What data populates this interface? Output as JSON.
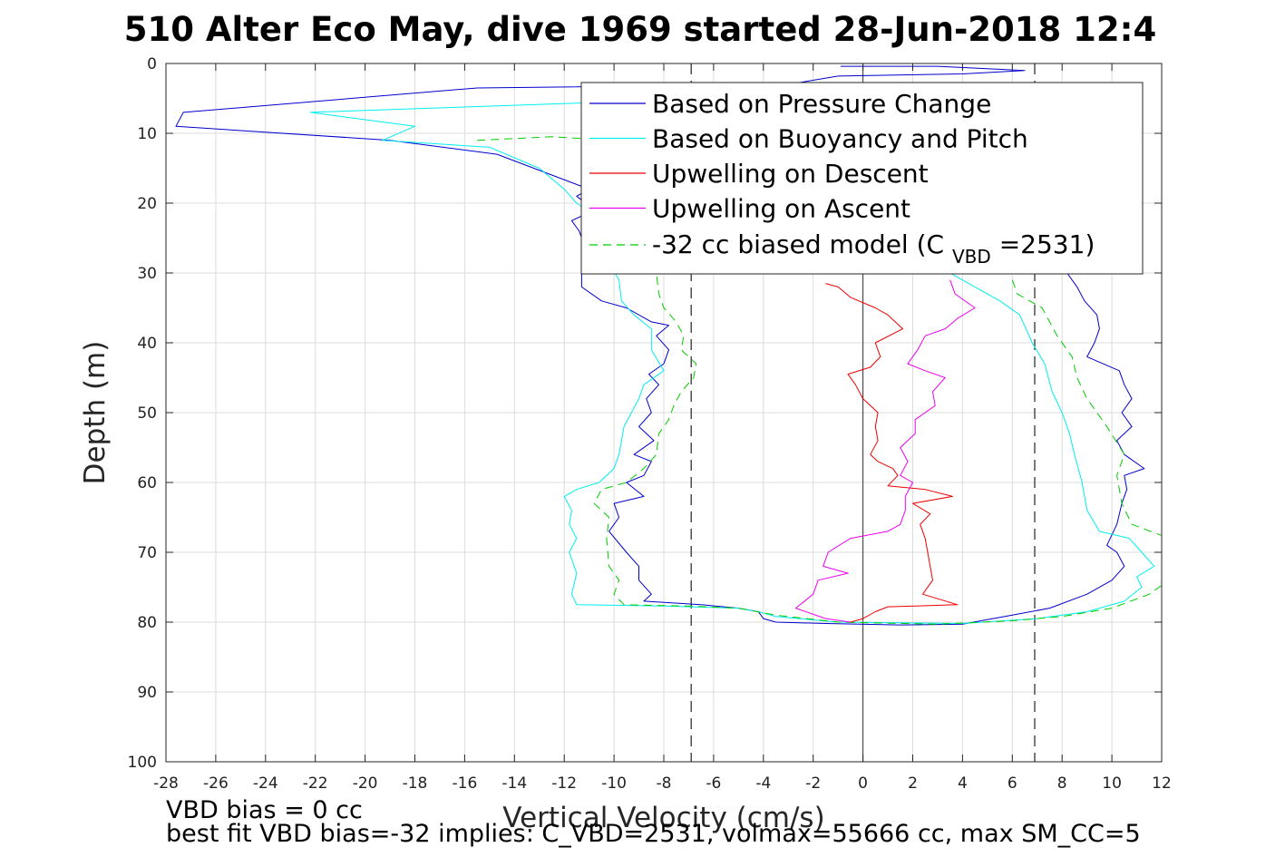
{
  "chart_data": {
    "type": "line",
    "title": "510 Alter Eco May, dive 1969 started 28-Jun-2018 12:4",
    "xlabel": "Vertical Velocity (cm/s)",
    "ylabel": "Depth (m)",
    "xlim": [
      -28,
      12
    ],
    "ylim": [
      0,
      100
    ],
    "y_reversed": true,
    "grid": true,
    "legend_position": "top-right",
    "xticks": [
      -28,
      -26,
      -24,
      -22,
      -20,
      -18,
      -16,
      -14,
      -12,
      -10,
      -8,
      -6,
      -4,
      -2,
      0,
      2,
      4,
      6,
      8,
      10,
      12
    ],
    "yticks": [
      0,
      10,
      20,
      30,
      40,
      50,
      60,
      70,
      80,
      90,
      100
    ],
    "reference_lines": {
      "zero_line_x": 0,
      "dashed_lines_x": [
        -6.9,
        6.9
      ]
    },
    "legend": {
      "entries": [
        {
          "label": "Based on Pressure Change",
          "color": "#0000cc",
          "style": "solid"
        },
        {
          "label": "Based on Buoyancy and Pitch",
          "color": "#00eeee",
          "style": "solid"
        },
        {
          "label": "Upwelling on Descent",
          "color": "#ee0000",
          "style": "solid"
        },
        {
          "label": "Upwelling on Ascent",
          "color": "#ee00ee",
          "style": "solid"
        }
      ],
      "model_entry": {
        "prefix": "-32 cc biased model (C",
        "subscript": "VBD",
        "suffix": "=2531)",
        "color": "#00cc00",
        "style": "dashed"
      }
    },
    "series": [
      {
        "name": "Based on Pressure Change",
        "color": "#0000cc",
        "points": [
          [
            -0.9,
            0.4
          ],
          [
            3,
            0.4
          ],
          [
            6.5,
            1
          ],
          [
            4,
            1.5
          ],
          [
            -1,
            1.8
          ],
          [
            -3,
            3
          ],
          [
            -15.5,
            3.5
          ],
          [
            -27.3,
            7
          ],
          [
            -27.6,
            9
          ],
          [
            -19,
            11
          ],
          [
            -14.7,
            13
          ],
          [
            -11,
            18
          ],
          [
            -11.5,
            19
          ],
          [
            -10.8,
            21
          ],
          [
            -11.7,
            22.5
          ],
          [
            -11.4,
            24
          ],
          [
            -11.2,
            26
          ],
          [
            -11,
            28
          ],
          [
            -11.3,
            30
          ],
          [
            -11.3,
            32
          ],
          [
            -10.5,
            34
          ],
          [
            -9.5,
            35
          ],
          [
            -8.5,
            37
          ],
          [
            -7.8,
            37.5
          ],
          [
            -8.3,
            39
          ],
          [
            -7.8,
            41
          ],
          [
            -8,
            43
          ],
          [
            -8.6,
            44.5
          ],
          [
            -8.2,
            46
          ],
          [
            -8.7,
            48
          ],
          [
            -8.5,
            50
          ],
          [
            -9,
            52
          ],
          [
            -8.4,
            54
          ],
          [
            -9.2,
            56
          ],
          [
            -8.5,
            57
          ],
          [
            -8.8,
            59
          ],
          [
            -9.5,
            60
          ],
          [
            -8.8,
            62
          ],
          [
            -10,
            63
          ],
          [
            -9.8,
            65
          ],
          [
            -10.2,
            67
          ],
          [
            -9.5,
            70
          ],
          [
            -9,
            72
          ],
          [
            -9,
            74
          ],
          [
            -8.5,
            76
          ],
          [
            -8.8,
            77
          ],
          [
            -6.5,
            77.5
          ],
          [
            -5,
            78
          ],
          [
            -4.2,
            78.5
          ],
          [
            -4,
            79.5
          ],
          [
            -3.5,
            80
          ],
          [
            -1.5,
            80.2
          ],
          [
            1.5,
            80.4
          ],
          [
            4,
            80.3
          ],
          [
            6,
            79
          ],
          [
            7.5,
            78
          ],
          [
            9,
            76
          ],
          [
            10,
            74
          ],
          [
            10.5,
            72
          ],
          [
            10.2,
            70
          ],
          [
            9.8,
            69
          ],
          [
            10.2,
            66
          ],
          [
            10.4,
            63
          ],
          [
            10.6,
            61
          ],
          [
            10.5,
            59
          ],
          [
            11.3,
            58
          ],
          [
            10.5,
            56
          ],
          [
            10.2,
            54
          ],
          [
            10.8,
            52
          ],
          [
            10.4,
            50
          ],
          [
            10.8,
            48
          ],
          [
            10.5,
            46
          ],
          [
            10.3,
            44
          ],
          [
            9,
            42
          ],
          [
            9.3,
            40
          ],
          [
            9.5,
            38
          ],
          [
            9.4,
            36
          ],
          [
            8.9,
            34
          ],
          [
            8.6,
            32
          ],
          [
            8.2,
            30
          ],
          [
            7,
            28
          ]
        ]
      },
      {
        "name": "Based on Buoyancy and Pitch",
        "color": "#00eeee",
        "points": [
          [
            -1,
            3
          ],
          [
            -6,
            5
          ],
          [
            -22.2,
            7
          ],
          [
            -18,
            9
          ],
          [
            -19.3,
            11
          ],
          [
            -15,
            12
          ],
          [
            -13,
            15
          ],
          [
            -12,
            18
          ],
          [
            -11.5,
            20
          ],
          [
            -10.7,
            22
          ],
          [
            -10.5,
            24
          ],
          [
            -10.7,
            26
          ],
          [
            -10.3,
            28
          ],
          [
            -9.8,
            31
          ],
          [
            -9.7,
            34
          ],
          [
            -9.2,
            36
          ],
          [
            -8.5,
            38
          ],
          [
            -8.5,
            41
          ],
          [
            -8,
            44
          ],
          [
            -8.8,
            46
          ],
          [
            -9,
            48
          ],
          [
            -9.3,
            50
          ],
          [
            -9.6,
            52
          ],
          [
            -9.8,
            56
          ],
          [
            -10,
            58
          ],
          [
            -10.6,
            60
          ],
          [
            -11.5,
            61
          ],
          [
            -12,
            62
          ],
          [
            -11.7,
            64
          ],
          [
            -11.8,
            66
          ],
          [
            -11.5,
            68
          ],
          [
            -11.8,
            70
          ],
          [
            -11.5,
            73
          ],
          [
            -11.7,
            76
          ],
          [
            -11.5,
            77.5
          ],
          [
            -8,
            77.7
          ],
          [
            -5,
            78
          ],
          [
            -4.2,
            78.5
          ],
          [
            -3.5,
            79.2
          ],
          [
            -1,
            80
          ],
          [
            4,
            80.2
          ],
          [
            7,
            79.5
          ],
          [
            9,
            78.5
          ],
          [
            10.5,
            77
          ],
          [
            11.2,
            75
          ],
          [
            11,
            73.5
          ],
          [
            11.7,
            72
          ],
          [
            11.2,
            70
          ],
          [
            10.7,
            68
          ],
          [
            9.5,
            67
          ],
          [
            9,
            64
          ],
          [
            8.8,
            60
          ],
          [
            8.5,
            56
          ],
          [
            8.3,
            53
          ],
          [
            8,
            50
          ],
          [
            7.6,
            47
          ],
          [
            7.3,
            43
          ],
          [
            6.8,
            40
          ],
          [
            6.3,
            36
          ],
          [
            5.5,
            34
          ],
          [
            4.5,
            32
          ],
          [
            3,
            29
          ]
        ]
      },
      {
        "name": "-32 cc biased model (CVBD=2531)",
        "color": "#00cc00",
        "dashed": true,
        "points": [
          [
            -15.5,
            11
          ],
          [
            -12.5,
            10.5
          ],
          [
            -10,
            11
          ],
          [
            -9.2,
            14
          ],
          [
            -8.7,
            18
          ],
          [
            -8.5,
            22
          ],
          [
            -8.2,
            26
          ],
          [
            -8.3,
            30
          ],
          [
            -8.2,
            33
          ],
          [
            -8,
            35
          ],
          [
            -7.5,
            37
          ],
          [
            -7.2,
            39
          ],
          [
            -7.3,
            41
          ],
          [
            -6.7,
            43
          ],
          [
            -6.8,
            45
          ],
          [
            -7.3,
            47
          ],
          [
            -7.6,
            49
          ],
          [
            -7.8,
            51
          ],
          [
            -8.2,
            53
          ],
          [
            -8.3,
            56
          ],
          [
            -8.8,
            58
          ],
          [
            -9.5,
            60
          ],
          [
            -10.5,
            61
          ],
          [
            -10.8,
            63
          ],
          [
            -10.2,
            65
          ],
          [
            -10.3,
            68
          ],
          [
            -10.2,
            72
          ],
          [
            -9.8,
            74
          ],
          [
            -10,
            76
          ],
          [
            -9.6,
            77.5
          ],
          [
            -7,
            77.7
          ],
          [
            -5,
            78
          ],
          [
            -3.5,
            79
          ],
          [
            -1,
            80
          ],
          [
            3,
            80.3
          ],
          [
            6,
            79.8
          ],
          [
            8,
            79.2
          ],
          [
            10,
            78
          ],
          [
            11.5,
            76
          ],
          [
            12.3,
            74
          ],
          [
            12,
            72
          ],
          [
            12.8,
            70
          ],
          [
            12.3,
            68
          ],
          [
            10.8,
            66
          ],
          [
            10.4,
            63
          ],
          [
            10.2,
            59
          ],
          [
            10.5,
            56
          ],
          [
            9.8,
            52
          ],
          [
            9,
            48
          ],
          [
            8.6,
            45
          ],
          [
            8.4,
            42
          ],
          [
            7.8,
            39
          ],
          [
            7.5,
            37
          ],
          [
            7.2,
            35
          ],
          [
            6.2,
            33
          ],
          [
            6,
            31
          ]
        ]
      },
      {
        "name": "Upwelling on Descent",
        "color": "#ee0000",
        "points": [
          [
            -1.5,
            31.5
          ],
          [
            -1,
            32
          ],
          [
            -0.5,
            33.5
          ],
          [
            0.5,
            35
          ],
          [
            1,
            36
          ],
          [
            1.6,
            38
          ],
          [
            0.5,
            40
          ],
          [
            0.7,
            42
          ],
          [
            0.3,
            43.5
          ],
          [
            -0.6,
            44.5
          ],
          [
            -0.3,
            46
          ],
          [
            0,
            48
          ],
          [
            0.6,
            50
          ],
          [
            0.5,
            52
          ],
          [
            0.6,
            54
          ],
          [
            0.3,
            56
          ],
          [
            0.6,
            57
          ],
          [
            1.2,
            58
          ],
          [
            1.4,
            59
          ],
          [
            1,
            60.5
          ],
          [
            2.5,
            61
          ],
          [
            3.6,
            62
          ],
          [
            2,
            63
          ],
          [
            2.7,
            64.5
          ],
          [
            2.3,
            66
          ],
          [
            2.5,
            68
          ],
          [
            2.6,
            70
          ],
          [
            2.7,
            72
          ],
          [
            2.8,
            74
          ],
          [
            2.4,
            76
          ],
          [
            3.8,
            77.5
          ],
          [
            1,
            77.8
          ],
          [
            0.5,
            78.5
          ],
          [
            0,
            79.5
          ],
          [
            -0.5,
            80
          ]
        ]
      },
      {
        "name": "Upwelling on Ascent",
        "color": "#ee00ee",
        "points": [
          [
            3.5,
            31
          ],
          [
            3.7,
            33
          ],
          [
            4.5,
            35
          ],
          [
            3.8,
            36.5
          ],
          [
            3.3,
            38
          ],
          [
            2.5,
            39
          ],
          [
            2.2,
            41
          ],
          [
            1.8,
            43
          ],
          [
            2.5,
            44
          ],
          [
            3.3,
            45
          ],
          [
            2.8,
            47
          ],
          [
            2.9,
            49
          ],
          [
            2.1,
            51
          ],
          [
            2.1,
            53
          ],
          [
            1.5,
            55
          ],
          [
            1.8,
            57
          ],
          [
            1.5,
            59
          ],
          [
            2,
            60
          ],
          [
            1.7,
            62
          ],
          [
            1.7,
            64
          ],
          [
            1.5,
            66
          ],
          [
            1,
            67
          ],
          [
            -0.5,
            68
          ],
          [
            -1.4,
            70
          ],
          [
            -1.6,
            72
          ],
          [
            -0.6,
            73
          ],
          [
            -1.8,
            74
          ],
          [
            -2,
            76
          ],
          [
            -2.7,
            78
          ],
          [
            -1.5,
            79.5
          ],
          [
            -0.5,
            80
          ]
        ]
      }
    ]
  },
  "footer": {
    "line1": "VBD bias = 0 cc",
    "line2": "best fit VBD bias=-32 implies: C_VBD=2531, volmax=55666 cc, max SM_CC=5"
  }
}
